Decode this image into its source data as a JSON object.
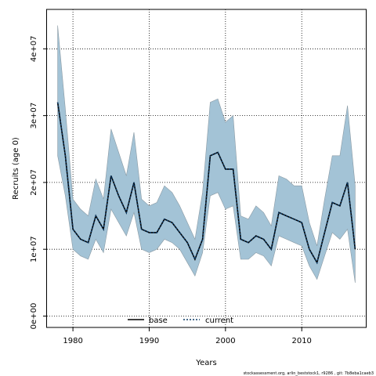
{
  "chart_data": {
    "type": "area",
    "xlabel": "Years",
    "ylabel": "Recruits (age 0)",
    "xlim": [
      1976.6,
      2018.4
    ],
    "ylim": [
      -1700000,
      45900000
    ],
    "x_ticks": [
      1980,
      1990,
      2000,
      2010
    ],
    "x_tick_labels": [
      "1980",
      "1990",
      "2000",
      "2010"
    ],
    "y_ticks": [
      0,
      10000000,
      20000000,
      30000000,
      40000000
    ],
    "y_tick_labels": [
      "0e+00",
      "1e+07",
      "2e+07",
      "3e+07",
      "4e+07"
    ],
    "grid": true,
    "grid_style": "dotted",
    "legend_position": "bottom-center",
    "colors": {
      "ribbon": "#a3c3d6",
      "ribbon_edge": "#8a9aa4",
      "base": "#000000",
      "current": "#0d3b66"
    },
    "x": [
      1978,
      1979,
      1980,
      1981,
      1982,
      1983,
      1984,
      1985,
      1986,
      1987,
      1988,
      1989,
      1990,
      1991,
      1992,
      1993,
      1994,
      1995,
      1996,
      1997,
      1998,
      1999,
      2000,
      2001,
      2002,
      2003,
      2004,
      2005,
      2006,
      2007,
      2008,
      2009,
      2010,
      2011,
      2012,
      2013,
      2014,
      2015,
      2016,
      2017
    ],
    "series": [
      {
        "name": "base",
        "style": "solid",
        "values": [
          32000000,
          24000000,
          13000000,
          11500000,
          11000000,
          15000000,
          13000000,
          21000000,
          18000000,
          15500000,
          20000000,
          13000000,
          12500000,
          12500000,
          14500000,
          14000000,
          12500000,
          11000000,
          8500000,
          11500000,
          24000000,
          24500000,
          22000000,
          22000000,
          11500000,
          11000000,
          12000000,
          11500000,
          10000000,
          15500000,
          15000000,
          14500000,
          14000000,
          10000000,
          8000000,
          12500000,
          17000000,
          16500000,
          20000000,
          10000000
        ]
      },
      {
        "name": "current",
        "style": "dotted",
        "values": [
          32000000,
          24000000,
          13000000,
          11500000,
          11000000,
          15000000,
          13000000,
          21000000,
          18000000,
          15500000,
          20000000,
          13000000,
          12500000,
          12500000,
          14500000,
          14000000,
          12500000,
          11000000,
          8500000,
          11500000,
          24000000,
          24500000,
          22000000,
          22000000,
          11500000,
          11000000,
          12000000,
          11500000,
          10000000,
          15500000,
          15000000,
          14500000,
          14000000,
          10000000,
          8000000,
          12500000,
          17000000,
          16500000,
          20000000,
          10000000
        ]
      }
    ],
    "ribbon": {
      "upper": [
        43500000,
        31000000,
        17500000,
        16000000,
        15000000,
        20500000,
        17500000,
        28000000,
        24500000,
        21000000,
        27500000,
        17500000,
        16500000,
        17000000,
        19500000,
        18500000,
        16500000,
        14000000,
        11500000,
        18500000,
        32000000,
        32500000,
        29000000,
        30000000,
        15000000,
        14500000,
        16500000,
        15500000,
        13500000,
        21000000,
        20500000,
        19500000,
        19500000,
        14000000,
        10500000,
        17500000,
        24000000,
        24000000,
        31500000,
        19500000
      ],
      "lower": [
        24000000,
        18000000,
        10000000,
        9000000,
        8500000,
        11500000,
        9500000,
        16000000,
        14000000,
        12000000,
        15500000,
        10000000,
        9500000,
        10000000,
        11500000,
        11000000,
        10000000,
        8000000,
        6000000,
        9500000,
        18000000,
        18500000,
        16000000,
        16500000,
        8500000,
        8500000,
        9500000,
        9000000,
        7500000,
        12000000,
        11500000,
        11000000,
        10500000,
        7500000,
        5500000,
        9000000,
        12500000,
        11500000,
        13000000,
        5000000
      ]
    }
  },
  "legend": {
    "items": [
      "base",
      "current"
    ]
  },
  "footer": {
    "text": "stockassessment.org, arlin_beststock1, r9286 , git: 7b8eba1caeb3"
  }
}
